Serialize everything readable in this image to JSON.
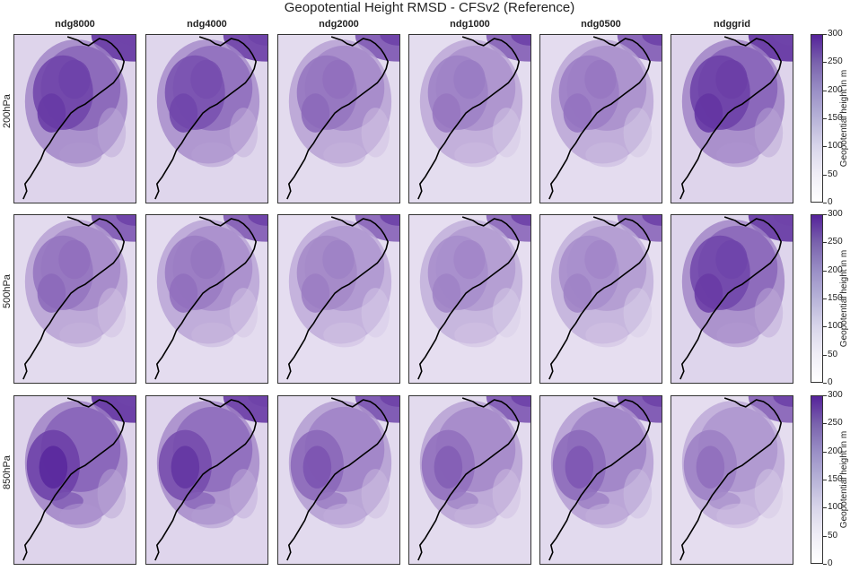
{
  "title": "Geopotential Height RMSD - CFSv2 (Reference)",
  "columns": [
    "ndg8000",
    "ndg4000",
    "ndg2000",
    "ndg1000",
    "ndg0500",
    "ndggrid"
  ],
  "rows": [
    "200hPa",
    "500hPa",
    "850hPa"
  ],
  "colorbar": {
    "label": "Geopotential height in m",
    "ticks": [
      "300",
      "250",
      "200",
      "150",
      "100",
      "50",
      "0"
    ],
    "range": [
      0,
      300
    ]
  },
  "colors": {
    "low": "#ffffff",
    "high": "#55229a",
    "coastline": "#000000"
  },
  "panel_intensity": [
    [
      0.92,
      0.82,
      0.55,
      0.45,
      0.48,
      0.95
    ],
    [
      0.55,
      0.5,
      0.4,
      0.36,
      0.36,
      0.9
    ],
    [
      0.95,
      0.85,
      0.62,
      0.55,
      0.6,
      0.42
    ]
  ]
}
